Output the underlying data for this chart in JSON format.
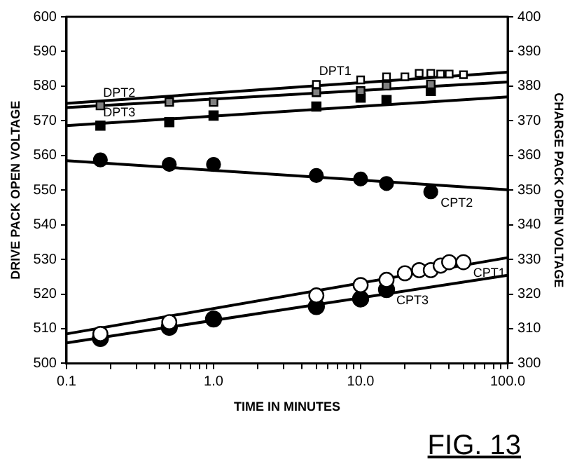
{
  "chart_data": {
    "type": "scatter",
    "xlabel": "TIME IN MINUTES",
    "ylabel": "DRIVE PACK OPEN VOLTAGE",
    "y2label": "CHARGE PACK OPEN VOLTAGE",
    "log": "x",
    "xlim": [
      0.1,
      100
    ],
    "xticks": [
      {
        "value": 0.1,
        "label": "0.1"
      },
      {
        "value": 0.2,
        "label": null
      },
      {
        "value": 0.3,
        "label": null
      },
      {
        "value": 0.4,
        "label": null
      },
      {
        "value": 0.5,
        "label": null
      },
      {
        "value": 0.6,
        "label": null
      },
      {
        "value": 0.7,
        "label": null
      },
      {
        "value": 0.8,
        "label": null
      },
      {
        "value": 0.9,
        "label": null
      },
      {
        "value": 1,
        "label": "1.0"
      },
      {
        "value": 2,
        "label": null
      },
      {
        "value": 3,
        "label": null
      },
      {
        "value": 4,
        "label": null
      },
      {
        "value": 5,
        "label": null
      },
      {
        "value": 6,
        "label": null
      },
      {
        "value": 7,
        "label": null
      },
      {
        "value": 8,
        "label": null
      },
      {
        "value": 9,
        "label": null
      },
      {
        "value": 10,
        "label": "10.0"
      },
      {
        "value": 20,
        "label": null
      },
      {
        "value": 30,
        "label": null
      },
      {
        "value": 40,
        "label": null
      },
      {
        "value": 50,
        "label": null
      },
      {
        "value": 60,
        "label": null
      },
      {
        "value": 70,
        "label": null
      },
      {
        "value": 80,
        "label": null
      },
      {
        "value": 90,
        "label": null
      },
      {
        "value": 100,
        "label": "100.0"
      }
    ],
    "ylim": [
      500,
      600
    ],
    "yticks": [
      500,
      510,
      520,
      530,
      540,
      550,
      560,
      570,
      580,
      590,
      600
    ],
    "y2lim": [
      300,
      400
    ],
    "y2ticks": [
      300,
      310,
      320,
      330,
      340,
      350,
      360,
      370,
      380,
      390,
      400
    ],
    "grid": false,
    "legend": false,
    "series": [
      {
        "name": "DPT1",
        "marker": "square",
        "color": "#ffffff",
        "x": [
          5,
          10,
          15,
          20,
          25,
          30,
          35,
          40,
          50
        ],
        "values": [
          580.5,
          581.8,
          582.7,
          582.7,
          583.7,
          583.7,
          583.5,
          583.5,
          583.3
        ]
      },
      {
        "name": "DPT2",
        "marker": "square",
        "color": "#808080",
        "x": [
          0.17,
          0.5,
          1,
          5,
          10,
          15,
          30
        ],
        "values": [
          574.4,
          575.4,
          575.4,
          578.2,
          578.6,
          580.1,
          580.5
        ]
      },
      {
        "name": "DPT3",
        "marker": "square",
        "color": "#000000",
        "x": [
          0.17,
          0.5,
          1,
          5,
          10,
          15,
          30
        ],
        "values": [
          568.6,
          569.6,
          571.5,
          574.1,
          576.7,
          576,
          578.6
        ]
      },
      {
        "name": "CPT2",
        "marker": "circle",
        "color": "#000000",
        "axis": "y2",
        "x": [
          0.17,
          0.5,
          1,
          5,
          10,
          15,
          30
        ],
        "values": [
          358.7,
          357.4,
          357.4,
          354.2,
          353.2,
          351.9,
          349.5
        ]
      },
      {
        "name": "CPT1",
        "marker": "circle",
        "color": "#ffffff",
        "axis": "y2",
        "x": [
          0.17,
          0.5,
          5,
          10,
          15,
          20,
          25,
          30,
          35,
          40,
          50
        ],
        "values": [
          308.5,
          311.9,
          319.6,
          322.6,
          324.1,
          326,
          326.9,
          326.9,
          328.2,
          329.2,
          329.2
        ]
      },
      {
        "name": "CPT3",
        "marker": "circle",
        "color": "#000000",
        "axis": "y2",
        "x": [
          0.17,
          0.5,
          1,
          5,
          10,
          15
        ],
        "values": [
          307.2,
          310.4,
          312.8,
          316.4,
          318.6,
          321.3
        ]
      },
      {
        "type": "line",
        "marker": "none",
        "color": "#000000",
        "x": [
          0.1,
          100
        ],
        "values": [
          575,
          584
        ]
      },
      {
        "type": "line",
        "marker": "none",
        "color": "#000000",
        "x": [
          0.1,
          100
        ],
        "values": [
          573.8,
          581.2
        ]
      },
      {
        "type": "line",
        "marker": "none",
        "color": "#000000",
        "x": [
          0.1,
          100
        ],
        "values": [
          568.6,
          576.9
        ]
      },
      {
        "type": "line",
        "marker": "none",
        "color": "#000000",
        "axis": "y2",
        "x": [
          0.1,
          100
        ],
        "values": [
          358.5,
          350.1
        ]
      },
      {
        "type": "line",
        "marker": "none",
        "color": "#000000",
        "axis": "y2",
        "x": [
          0.1,
          100
        ],
        "values": [
          308.5,
          330.5
        ]
      },
      {
        "type": "line",
        "marker": "none",
        "color": "#000000",
        "axis": "y2",
        "x": [
          0.1,
          100
        ],
        "values": [
          305.9,
          325.4
        ]
      }
    ],
    "annotations": [
      "FIG. 13"
    ]
  }
}
